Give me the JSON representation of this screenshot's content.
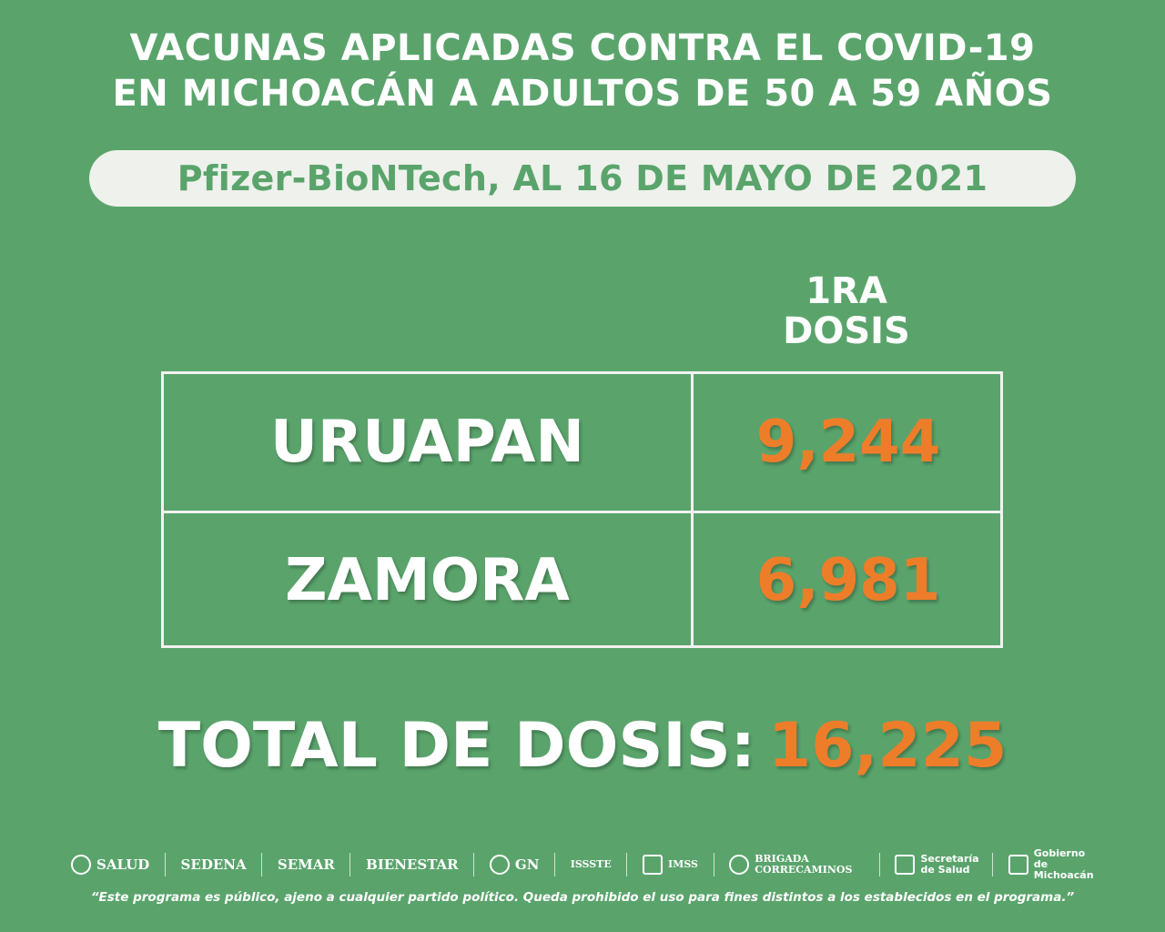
{
  "title": {
    "line1": "VACUNAS APLICADAS CONTRA EL COVID-19",
    "line2": "EN MICHOACÁN A ADULTOS DE 50 A 59 AÑOS"
  },
  "subtitle": "Pfizer-BioNTech, AL 16 DE MAYO DE 2021",
  "table": {
    "column_header": [
      "1RA",
      "DOSIS"
    ],
    "rows": [
      {
        "name": "URUAPAN",
        "value": "9,244"
      },
      {
        "name": "ZAMORA",
        "value": "6,981"
      }
    ]
  },
  "total": {
    "label": "TOTAL DE DOSIS:",
    "value": "16,225"
  },
  "logos": {
    "salud": "SALUD",
    "sedena": "SEDENA",
    "semar": "SEMAR",
    "bienestar": "BIENESTAR",
    "gn": "GN",
    "issste": "ISSSTE",
    "imss": "IMSS",
    "brigada": "BRIGADA CORRECAMINOS",
    "secretaria": "Secretaría de Salud",
    "gobierno": "Gobierno de Michoacán"
  },
  "disclaimer": "“Este programa es público, ajeno a cualquier partido político. Queda prohibido el uso para fines distintos a los establecidos en el programa.”",
  "colors": {
    "background": "#5aa46c",
    "accent": "#ee7d2a",
    "text": "#ffffff",
    "pill": "#eef1ec"
  }
}
